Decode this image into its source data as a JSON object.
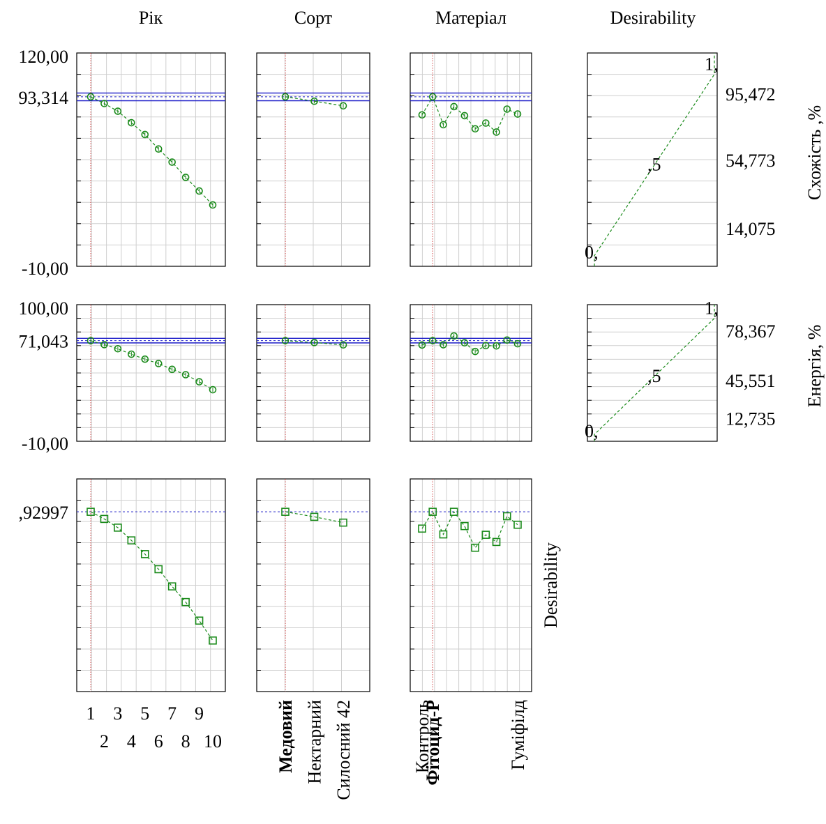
{
  "chart_data": {
    "type": "line",
    "title": "",
    "factors": [
      {
        "name": "Рік",
        "levels": [
          "1",
          "2",
          "3",
          "4",
          "5",
          "6",
          "7",
          "8",
          "9",
          "10"
        ],
        "selected": "1",
        "bold_labels": []
      },
      {
        "name": "Сорт",
        "levels": [
          "Медовий",
          "Нектарний",
          "Силосний 42"
        ],
        "selected": "Медовий",
        "bold_labels": [
          "Медовий"
        ]
      },
      {
        "name": "Матеріал",
        "levels": [
          "Контроль",
          "Фітоцид-Р",
          "",
          "",
          "",
          "",
          "",
          "",
          "",
          "Гуміфілд"
        ],
        "selected": "Фітоцид-Р",
        "bold_labels": [
          "Фітоцид-Р"
        ]
      }
    ],
    "desirability_header": "Desirability",
    "responses": [
      {
        "name": "Схожість ,%",
        "ylim": [
          -10,
          120
        ],
        "ytick_labels": [
          "120,00",
          "93,314",
          "-10,00"
        ],
        "current": 93.314,
        "ci": [
          90.9,
          95.6
        ],
        "series": [
          {
            "factor": "Рік",
            "values": [
              93.3,
              89.2,
              84.5,
              77.5,
              70.3,
              61.5,
              53.5,
              44.2,
              35.9,
              27.4
            ]
          },
          {
            "factor": "Сорт",
            "values": [
              93.3,
              90.6,
              87.8
            ]
          },
          {
            "factor": "Матеріал",
            "values": [
              82.3,
              93.3,
              76.3,
              87.3,
              81.8,
              73.8,
              77.3,
              71.8,
              85.8,
              82.8
            ]
          }
        ],
        "desirability": {
          "scale_labels": [
            "95,472",
            "54,773",
            "14,075"
          ],
          "points": [
            [
              14.075,
              0
            ],
            [
              95.472,
              1
            ]
          ],
          "point_labels": [
            "0,",
            ",5",
            "1,"
          ]
        }
      },
      {
        "name": "Енергія, %",
        "ylim": [
          -10,
          100
        ],
        "ytick_labels": [
          "100,00",
          "71,043",
          "-10,00"
        ],
        "current": 71.043,
        "ci": [
          69.2,
          72.9
        ],
        "series": [
          {
            "factor": "Рік",
            "values": [
              71.0,
              67.8,
              64.5,
              60.1,
              56.1,
              52.6,
              47.9,
              43.6,
              37.9,
              31.5
            ]
          },
          {
            "factor": "Сорт",
            "values": [
              71.0,
              69.5,
              67.6
            ]
          },
          {
            "factor": "Матеріал",
            "values": [
              67.5,
              71.0,
              67.7,
              74.8,
              69.3,
              62.3,
              67.0,
              66.8,
              71.5,
              68.5
            ]
          }
        ],
        "desirability": {
          "scale_labels": [
            "78,367",
            "45,551",
            "12,735"
          ],
          "points": [
            [
              12.735,
              0
            ],
            [
              78.367,
              1
            ]
          ],
          "point_labels": [
            "0,",
            ",5",
            "1,"
          ]
        }
      }
    ],
    "desirability_row": {
      "name": "Desirability",
      "ylim": [
        0,
        1.1
      ],
      "ytick_labels": [
        ",92997"
      ],
      "current": 0.92997,
      "series": [
        {
          "factor": "Рік",
          "values": [
            0.93,
            0.893,
            0.848,
            0.782,
            0.711,
            0.633,
            0.544,
            0.463,
            0.367,
            0.264
          ]
        },
        {
          "factor": "Сорт",
          "values": [
            0.93,
            0.904,
            0.874
          ]
        },
        {
          "factor": "Матеріал",
          "values": [
            0.843,
            0.93,
            0.813,
            0.93,
            0.856,
            0.744,
            0.811,
            0.774,
            0.907,
            0.863
          ]
        }
      ]
    }
  }
}
